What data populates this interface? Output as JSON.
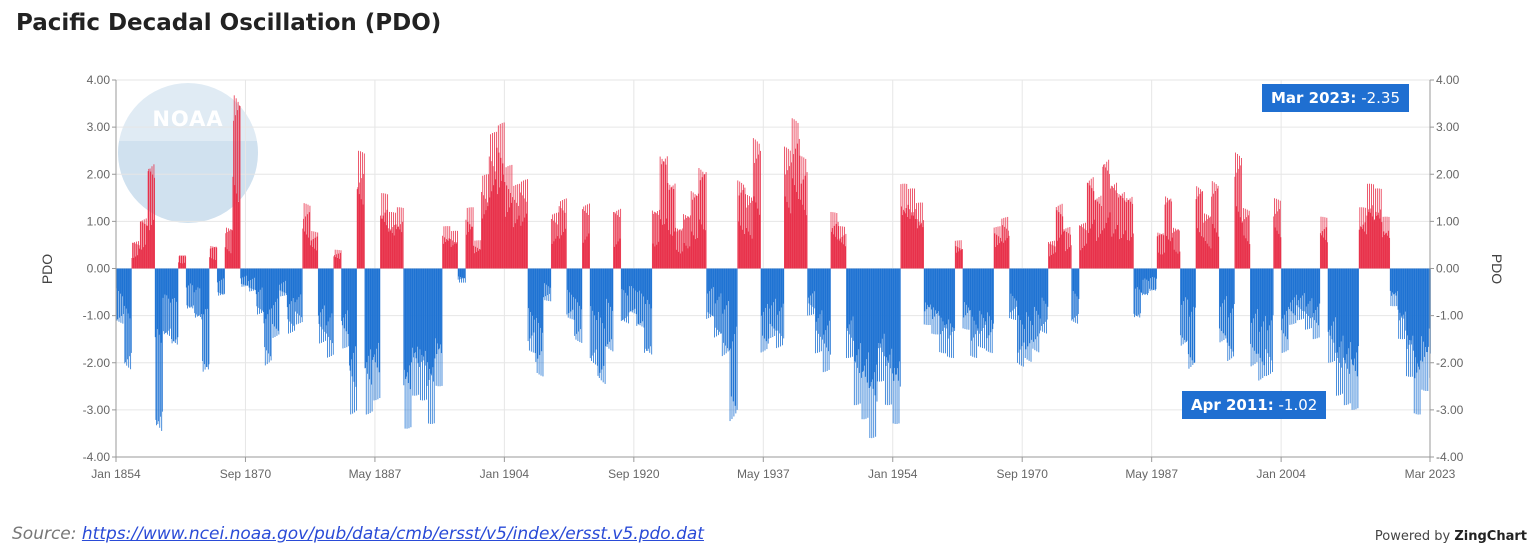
{
  "title": "Pacific Decadal Oscillation (PDO)",
  "logo_text": "NOAA",
  "source_label": "Source:",
  "source_url": "https://www.ncei.noaa.gov/pub/data/cmb/ersst/v5/index/ersst.v5.pdo.dat",
  "powered_prefix": "Powered by",
  "powered_brand": "ZingChart",
  "callouts": [
    {
      "label": "Mar 2023:",
      "value": "-2.35"
    },
    {
      "label": "Apr 2011:",
      "value": "-1.02"
    }
  ],
  "colors": {
    "positive": "#e8314a",
    "negative": "#1f73d3",
    "callout": "#1f6fd1",
    "grid": "#e6e6e6"
  },
  "chart_data": {
    "type": "bar",
    "ylabel": "PDO",
    "ylabel_right": "PDO",
    "ylim": [
      -4,
      4
    ],
    "y_ticks": [
      "4.00",
      "3.00",
      "2.00",
      "1.00",
      "0.00",
      "-1.00",
      "-2.00",
      "-3.00",
      "-4.00"
    ],
    "x_range": [
      "Jan 1854",
      "Mar 2023"
    ],
    "x_ticks": [
      "Jan 1854",
      "Sep 1870",
      "May 1887",
      "Jan 1904",
      "Sep 1920",
      "May 1937",
      "Jan 1954",
      "Sep 1970",
      "May 1987",
      "Jan 2004",
      "Mar 2023"
    ],
    "series_resolution": "annual",
    "years": [
      1854,
      1855,
      1856,
      1857,
      1858,
      1859,
      1860,
      1861,
      1862,
      1863,
      1864,
      1865,
      1866,
      1867,
      1868,
      1869,
      1870,
      1871,
      1872,
      1873,
      1874,
      1875,
      1876,
      1877,
      1878,
      1879,
      1880,
      1881,
      1882,
      1883,
      1884,
      1885,
      1886,
      1887,
      1888,
      1889,
      1890,
      1891,
      1892,
      1893,
      1894,
      1895,
      1896,
      1897,
      1898,
      1899,
      1900,
      1901,
      1902,
      1903,
      1904,
      1905,
      1906,
      1907,
      1908,
      1909,
      1910,
      1911,
      1912,
      1913,
      1914,
      1915,
      1916,
      1917,
      1918,
      1919,
      1920,
      1921,
      1922,
      1923,
      1924,
      1925,
      1926,
      1927,
      1928,
      1929,
      1930,
      1931,
      1932,
      1933,
      1934,
      1935,
      1936,
      1937,
      1938,
      1939,
      1940,
      1941,
      1942,
      1943,
      1944,
      1945,
      1946,
      1947,
      1948,
      1949,
      1950,
      1951,
      1952,
      1953,
      1954,
      1955,
      1956,
      1957,
      1958,
      1959,
      1960,
      1961,
      1962,
      1963,
      1964,
      1965,
      1966,
      1967,
      1968,
      1969,
      1970,
      1971,
      1972,
      1973,
      1974,
      1975,
      1976,
      1977,
      1978,
      1979,
      1980,
      1981,
      1982,
      1983,
      1984,
      1985,
      1986,
      1987,
      1988,
      1989,
      1990,
      1991,
      1992,
      1993,
      1994,
      1995,
      1996,
      1997,
      1998,
      1999,
      2000,
      2001,
      2002,
      2003,
      2004,
      2005,
      2006,
      2007,
      2008,
      2009,
      2010,
      2011,
      2012,
      2013,
      2014,
      2015,
      2016,
      2017,
      2018,
      2019,
      2020,
      2021,
      2022,
      2023
    ],
    "max_values": [
      -1.2,
      -2.2,
      0.6,
      1.1,
      2.3,
      -3.6,
      -1.5,
      -1.7,
      0.3,
      -0.9,
      -1.1,
      -2.3,
      0.5,
      -0.6,
      0.9,
      3.8,
      -0.4,
      -0.5,
      -1.0,
      -2.1,
      -1.5,
      -0.6,
      -1.4,
      -1.2,
      1.4,
      0.8,
      -1.6,
      -1.9,
      0.4,
      -1.7,
      -3.1,
      2.5,
      -3.1,
      -2.8,
      1.6,
      1.2,
      1.3,
      -3.4,
      -2.7,
      -2.8,
      -3.3,
      -2.5,
      0.9,
      0.8,
      -0.3,
      1.3,
      0.6,
      2.0,
      2.9,
      3.1,
      2.2,
      1.8,
      1.9,
      -1.8,
      -2.3,
      -0.7,
      1.2,
      1.5,
      -1.1,
      -1.6,
      1.4,
      -2.1,
      -2.5,
      -1.8,
      1.3,
      -1.2,
      -1.0,
      -1.3,
      -1.9,
      1.3,
      2.5,
      1.9,
      0.9,
      1.2,
      1.7,
      2.2,
      -1.1,
      -1.5,
      -1.9,
      -3.3,
      1.9,
      1.6,
      2.8,
      -1.8,
      -1.5,
      -1.7,
      2.6,
      3.2,
      2.4,
      -1.0,
      -1.8,
      -2.2,
      1.2,
      0.9,
      -1.9,
      -2.9,
      -3.2,
      -3.6,
      -2.4,
      -2.9,
      -3.3,
      1.8,
      1.7,
      1.4,
      -1.2,
      -1.4,
      -1.8,
      -1.9,
      0.6,
      -1.3,
      -1.9,
      -1.7,
      -1.8,
      0.9,
      1.1,
      -1.1,
      -2.1,
      -2.0,
      -1.8,
      -1.4,
      0.6,
      1.4,
      0.9,
      -1.2,
      1.0,
      2.0,
      1.6,
      2.4,
      1.9,
      1.7,
      1.6,
      -1.1,
      -0.6,
      -0.5,
      0.8,
      1.6,
      0.9,
      -1.7,
      -2.2,
      1.8,
      1.2,
      1.9,
      -1.6,
      -2.0,
      2.5,
      1.3,
      -2.1,
      -2.4,
      -2.3,
      1.5,
      -1.8,
      -1.2,
      -1.1,
      -1.3,
      -1.5,
      1.1,
      -2.0,
      -2.7,
      -2.9,
      -3.0,
      1.3,
      1.8,
      1.7,
      1.1,
      -0.8,
      -1.5,
      -2.3,
      -3.1,
      -2.6,
      -2.35
    ]
  }
}
